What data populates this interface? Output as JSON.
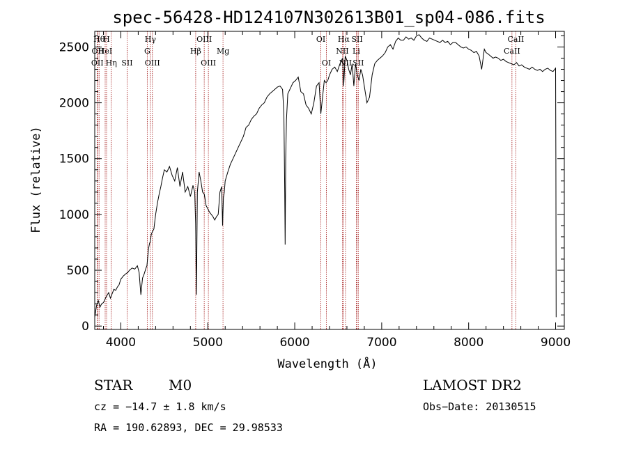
{
  "chart_data": {
    "type": "line",
    "title": "spec-56428-HD124107N302613B01_sp04-086.fits",
    "xlabel": "Wavelength (Å)",
    "ylabel": "Flux (relative)",
    "xlim": [
      3700,
      9100
    ],
    "ylim": [
      -30,
      2640
    ],
    "x_ticks": [
      4000,
      5000,
      6000,
      7000,
      8000,
      9000
    ],
    "y_ticks": [
      0,
      500,
      1000,
      1500,
      2000,
      2500
    ],
    "grid": false,
    "series": [
      {
        "color": "#000000",
        "x": [
          3700,
          3720,
          3740,
          3760,
          3780,
          3800,
          3830,
          3860,
          3880,
          3900,
          3920,
          3940,
          3960,
          3980,
          4000,
          4030,
          4060,
          4080,
          4100,
          4130,
          4160,
          4190,
          4210,
          4230,
          4250,
          4270,
          4290,
          4300,
          4310,
          4320,
          4330,
          4340,
          4350,
          4360,
          4380,
          4400,
          4420,
          4440,
          4460,
          4480,
          4500,
          4530,
          4560,
          4590,
          4620,
          4650,
          4680,
          4710,
          4740,
          4770,
          4800,
          4830,
          4850,
          4860,
          4870,
          4880,
          4900,
          4920,
          4940,
          4960,
          4980,
          5000,
          5020,
          5040,
          5060,
          5080,
          5100,
          5120,
          5140,
          5160,
          5170,
          5180,
          5190,
          5200,
          5230,
          5260,
          5290,
          5320,
          5350,
          5380,
          5410,
          5440,
          5470,
          5500,
          5530,
          5560,
          5590,
          5620,
          5650,
          5680,
          5710,
          5740,
          5770,
          5800,
          5830,
          5860,
          5875,
          5885,
          5890,
          5896,
          5905,
          5920,
          5950,
          5980,
          6010,
          6040,
          6070,
          6100,
          6130,
          6160,
          6190,
          6220,
          6250,
          6280,
          6300,
          6320,
          6340,
          6360,
          6380,
          6400,
          6430,
          6460,
          6490,
          6520,
          6550,
          6563,
          6580,
          6600,
          6620,
          6640,
          6660,
          6680,
          6700,
          6720,
          6740,
          6760,
          6780,
          6800,
          6830,
          6860,
          6890,
          6920,
          6950,
          6980,
          7010,
          7040,
          7070,
          7100,
          7130,
          7160,
          7190,
          7220,
          7250,
          7280,
          7310,
          7340,
          7370,
          7400,
          7430,
          7460,
          7490,
          7520,
          7550,
          7580,
          7610,
          7640,
          7670,
          7700,
          7730,
          7760,
          7790,
          7820,
          7850,
          7880,
          7910,
          7940,
          7970,
          8000,
          8030,
          8060,
          8090,
          8120,
          8150,
          8180,
          8200,
          8220,
          8250,
          8280,
          8310,
          8340,
          8370,
          8400,
          8430,
          8460,
          8490,
          8520,
          8550,
          8580,
          8610,
          8640,
          8670,
          8700,
          8730,
          8760,
          8790,
          8820,
          8850,
          8880,
          8910,
          8940,
          8970,
          9000,
          9003,
          9006
        ],
        "y": [
          80,
          180,
          230,
          170,
          200,
          210,
          260,
          300,
          250,
          290,
          330,
          320,
          350,
          370,
          420,
          450,
          470,
          480,
          500,
          520,
          510,
          540,
          480,
          280,
          430,
          470,
          520,
          540,
          620,
          700,
          740,
          760,
          820,
          840,
          870,
          1000,
          1100,
          1180,
          1250,
          1330,
          1400,
          1380,
          1430,
          1350,
          1300,
          1420,
          1250,
          1380,
          1200,
          1250,
          1160,
          1260,
          1200,
          920,
          280,
          1200,
          1380,
          1300,
          1200,
          1180,
          1080,
          1050,
          1020,
          1000,
          980,
          950,
          980,
          1000,
          1200,
          1250,
          900,
          1150,
          1200,
          1300,
          1380,
          1450,
          1500,
          1550,
          1600,
          1650,
          1700,
          1780,
          1800,
          1850,
          1880,
          1900,
          1950,
          1980,
          2000,
          2050,
          2080,
          2100,
          2120,
          2140,
          2150,
          2120,
          1900,
          1200,
          730,
          1500,
          1850,
          2080,
          2130,
          2180,
          2200,
          2230,
          2100,
          2080,
          1980,
          1950,
          1900,
          2000,
          2150,
          2180,
          1900,
          2050,
          2200,
          2180,
          2200,
          2250,
          2300,
          2320,
          2280,
          2350,
          2400,
          2150,
          2420,
          2380,
          2300,
          2250,
          2350,
          2150,
          2350,
          2250,
          2200,
          2300,
          2250,
          2150,
          2000,
          2050,
          2250,
          2350,
          2380,
          2400,
          2420,
          2450,
          2500,
          2520,
          2480,
          2550,
          2580,
          2560,
          2560,
          2590,
          2570,
          2580,
          2560,
          2600,
          2610,
          2580,
          2560,
          2550,
          2580,
          2570,
          2560,
          2550,
          2540,
          2560,
          2540,
          2550,
          2520,
          2540,
          2540,
          2520,
          2500,
          2490,
          2500,
          2480,
          2470,
          2450,
          2460,
          2420,
          2300,
          2480,
          2450,
          2440,
          2420,
          2400,
          2410,
          2400,
          2380,
          2390,
          2370,
          2360,
          2350,
          2340,
          2360,
          2330,
          2340,
          2320,
          2310,
          2300,
          2320,
          2300,
          2290,
          2300,
          2280,
          2300,
          2310,
          2290,
          2280,
          2310,
          1500,
          80
        ]
      }
    ],
    "spectral_lines": [
      {
        "wl": 3750,
        "label": "Hθ",
        "row": 1
      },
      {
        "wl": 3735,
        "label": "OII",
        "row": 2
      },
      {
        "wl": 3730,
        "label": "OII",
        "row": 3
      },
      {
        "wl": 3836,
        "label": "H",
        "row": 1
      },
      {
        "wl": 3820,
        "label": "HeI",
        "row": 2
      },
      {
        "wl": 3890,
        "label": "Hη",
        "row": 3
      },
      {
        "wl": 4072,
        "label": "SII",
        "row": 3
      },
      {
        "wl": 4340,
        "label": "Hγ",
        "row": 1
      },
      {
        "wl": 4304,
        "label": "G",
        "row": 2
      },
      {
        "wl": 4363,
        "label": "OIII",
        "row": 3
      },
      {
        "wl": 4861,
        "label": "Hβ",
        "row": 2
      },
      {
        "wl": 4959,
        "label": "OIII",
        "row": 1
      },
      {
        "wl": 5007,
        "label": "OIII",
        "row": 3
      },
      {
        "wl": 5175,
        "label": "Mg",
        "row": 2
      },
      {
        "wl": 6300,
        "label": "OI",
        "row": 1
      },
      {
        "wl": 6364,
        "label": "OI",
        "row": 3
      },
      {
        "wl": 6563,
        "label": "Hα",
        "row": 1
      },
      {
        "wl": 6548,
        "label": "NII",
        "row": 2
      },
      {
        "wl": 6584,
        "label": "NII",
        "row": 3
      },
      {
        "wl": 6708,
        "label": "Li",
        "row": 2
      },
      {
        "wl": 6717,
        "label": "SII",
        "row": 1
      },
      {
        "wl": 6731,
        "label": "SII",
        "row": 3
      },
      {
        "wl": 8498,
        "label": "CaII",
        "row": 2
      },
      {
        "wl": 8542,
        "label": "CaII",
        "row": 1
      }
    ]
  },
  "info": {
    "object_class": "STAR",
    "subclass": "M0",
    "survey": "LAMOST DR2",
    "cz": "cz = −14.7 ± 1.8 km/s",
    "obs_date": "Obs−Date: 20130515",
    "coords": "RA = 190.62893, DEC =  29.98533"
  },
  "colors": {
    "line_marker": "#a01010",
    "spectrum": "#000000"
  }
}
